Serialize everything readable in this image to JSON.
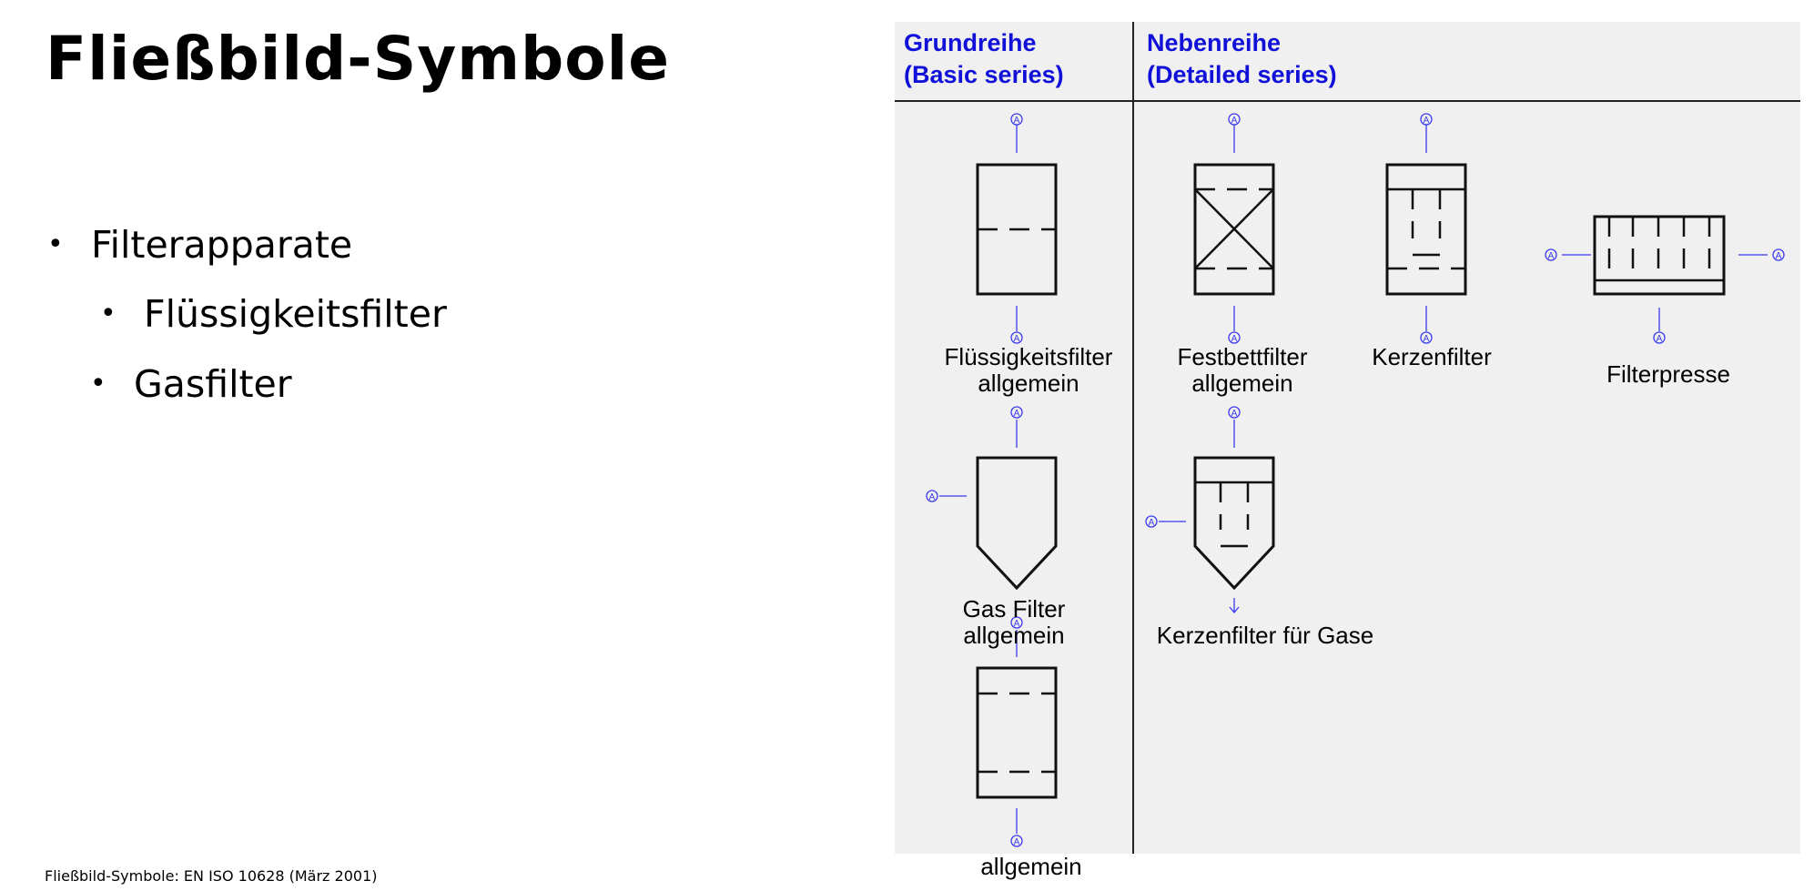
{
  "title": "Fließbild-Symbole",
  "bullets": [
    {
      "text": "Filterapparate"
    },
    {
      "text": "Flüssigkeitsfilter"
    },
    {
      "text": "Gasfilter"
    }
  ],
  "footnote": "Fließbild-Symbole: EN ISO 10628 (März 2001)",
  "headers": {
    "basic_line1": "Grundreihe",
    "basic_line2": "(Basic series)",
    "detailed_line1": "Nebenreihe",
    "detailed_line2": "(Detailed series)"
  },
  "connector_mark": "A",
  "symbols": [
    {
      "id": "fluessigkeitsfilter",
      "line1": "Flüssigkeitsfilter",
      "line2": "allgemein"
    },
    {
      "id": "festbettfilter",
      "line1": "Festbettfilter",
      "line2": "allgemein"
    },
    {
      "id": "kerzenfilter",
      "line1": "Kerzenfilter",
      "line2": ""
    },
    {
      "id": "filterpresse",
      "line1": "Filterpresse",
      "line2": ""
    },
    {
      "id": "gasfilter",
      "line1": "Gas Filter",
      "line2": "allgemein"
    },
    {
      "id": "kerzenfilter-gase",
      "line1": "Kerzenfilter für Gase",
      "line2": ""
    },
    {
      "id": "filter-allgemein",
      "line1": "allgemein",
      "line2": ""
    }
  ],
  "colors": {
    "header": "#1010d8",
    "connector": "#3a3aee",
    "panel": "#f0f0f0"
  }
}
